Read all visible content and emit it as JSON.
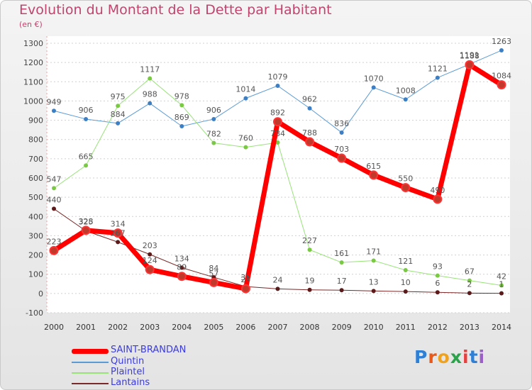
{
  "chart_data": {
    "type": "line",
    "title": "Evolution du Montant de la Dette par Habitant",
    "subtitle": "(en €)",
    "xlabel": "",
    "ylabel": "",
    "x": [
      "2000",
      "2001",
      "2002",
      "2003",
      "2004",
      "2005",
      "2006",
      "2007",
      "2008",
      "2009",
      "2010",
      "2011",
      "2012",
      "2013",
      "2014"
    ],
    "ylim": [
      -100,
      1300
    ],
    "yticks": [
      "-100",
      "0",
      "100",
      "200",
      "300",
      "400",
      "500",
      "600",
      "700",
      "800",
      "900",
      "1000",
      "1100",
      "1200",
      "1300"
    ],
    "grid": "dashed-horizontal",
    "legend": "bottom-left",
    "series": [
      {
        "name": "SAINT-BRANDAN",
        "color": "#ff0000",
        "marker": "#c0392b",
        "width": 7,
        "values": [
          223,
          328,
          314,
          124,
          89,
          57,
          25,
          892,
          788,
          703,
          615,
          550,
          490,
          1188,
          1084
        ],
        "labels": [
          "223",
          "328",
          "314",
          "124",
          "89",
          "57",
          "25",
          "892",
          "788",
          "703",
          "615",
          "550",
          "490",
          "1188",
          "1084"
        ]
      },
      {
        "name": "Quintin",
        "color": "#5b9bd5",
        "marker": "#3d7fc4",
        "width": 1,
        "values": [
          949,
          906,
          884,
          988,
          869,
          906,
          1014,
          1079,
          962,
          836,
          1070,
          1008,
          1121,
          1191,
          1263
        ],
        "labels": [
          "949",
          "906",
          "884",
          "988",
          "869",
          "906",
          "1014",
          "1079",
          "962",
          "836",
          "1070",
          "1008",
          "1121",
          "1191",
          "1263"
        ]
      },
      {
        "name": "Plaintel",
        "color": "#99e27a",
        "marker": "#7ac943",
        "width": 1,
        "values": [
          547,
          665,
          975,
          1117,
          978,
          782,
          760,
          784,
          227,
          161,
          171,
          121,
          93,
          67,
          42
        ],
        "labels": [
          "547",
          "665",
          "975",
          "1117",
          "978",
          "782",
          "760",
          "784",
          "227",
          "161",
          "171",
          "121",
          "93",
          "67",
          "42"
        ]
      },
      {
        "name": "Lantains",
        "color": "#7a2a2a",
        "marker": "#5c1a1a",
        "width": 1,
        "values": [
          440,
          325,
          267,
          203,
          134,
          84,
          36,
          24,
          19,
          17,
          13,
          10,
          6,
          2,
          1
        ],
        "labels": [
          "440",
          "325",
          "267",
          "203",
          "134",
          "84",
          "36",
          "24",
          "19",
          "17",
          "13",
          "10",
          "6",
          "2",
          "1"
        ]
      }
    ]
  },
  "brand": {
    "letters": [
      "P",
      "r",
      "o",
      "x",
      "i",
      "t",
      "i"
    ],
    "colors": [
      "#2e7fd6",
      "#e8591a",
      "#f0a21c",
      "#2aa34a",
      "#e83e3e",
      "#2e7fd6",
      "#9b5fc9"
    ]
  }
}
